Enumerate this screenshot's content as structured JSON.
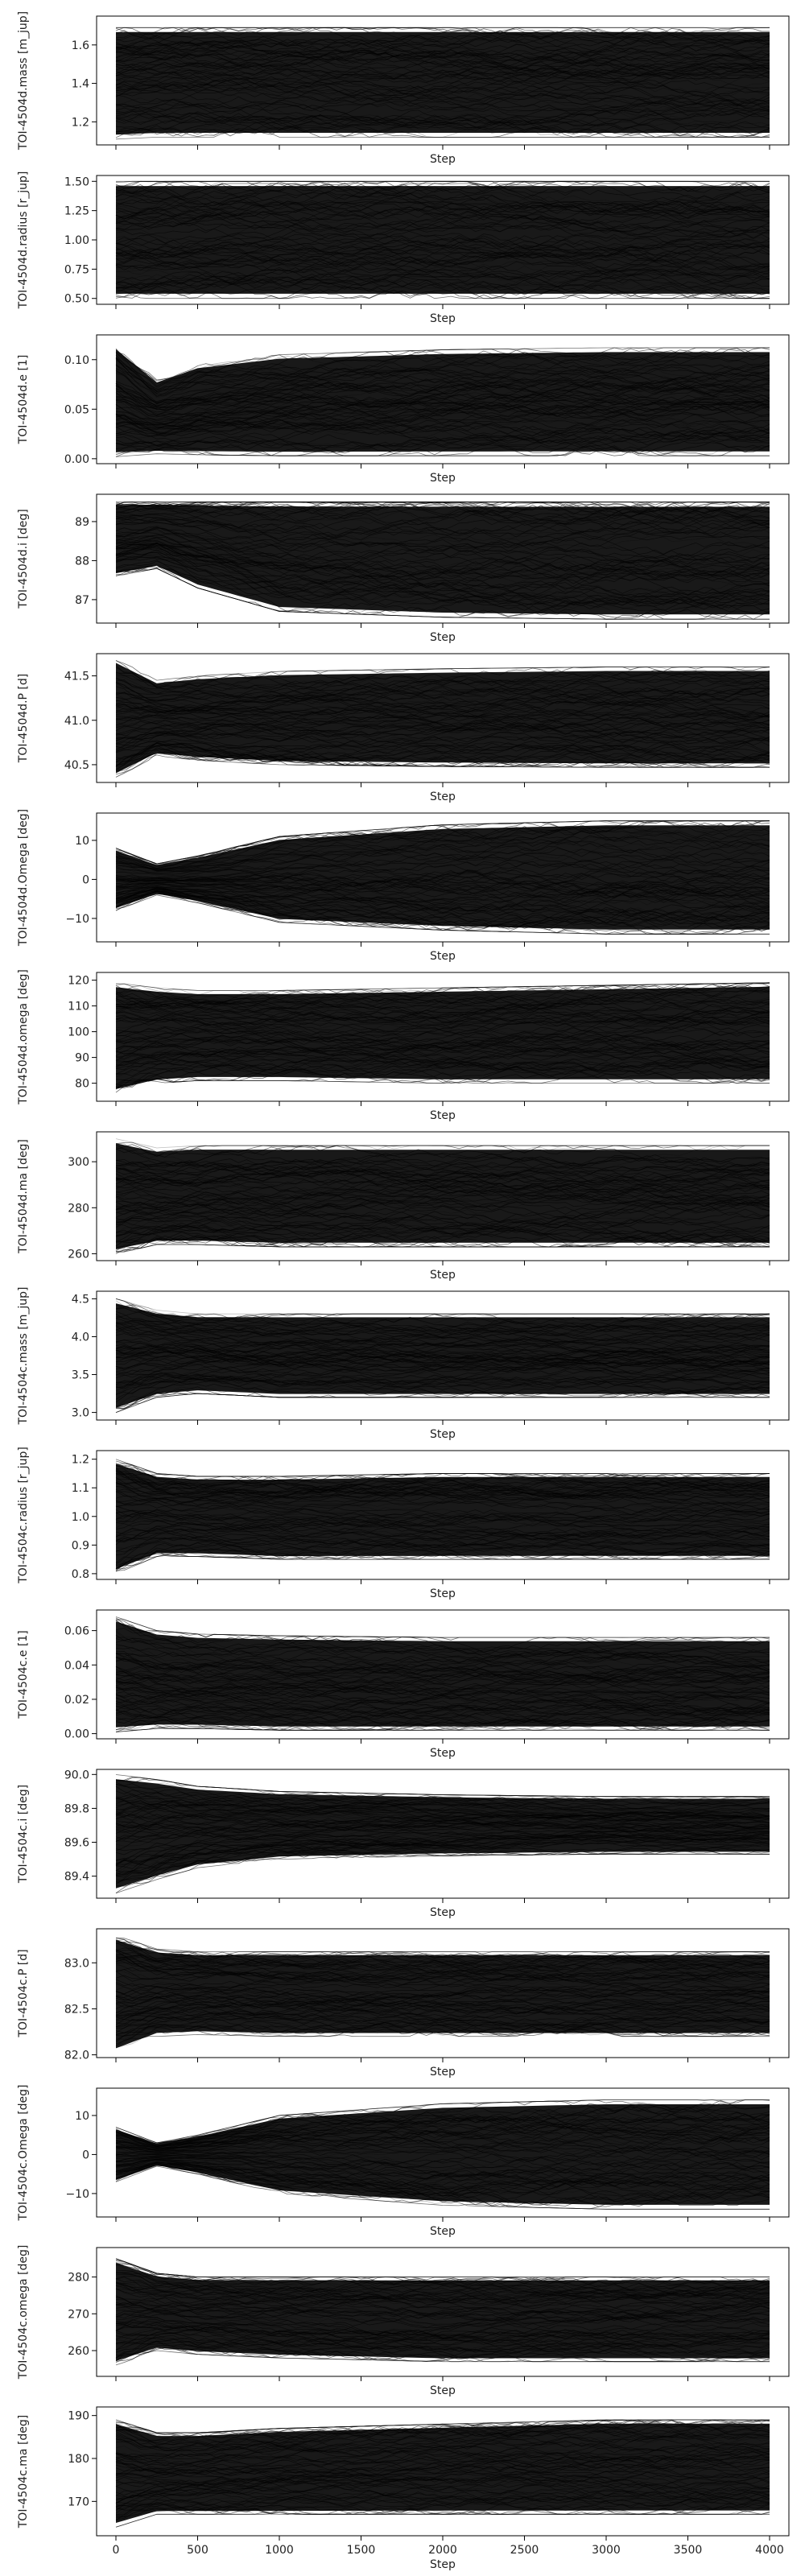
{
  "chart_data": [
    {
      "type": "line",
      "xlabel": "Step",
      "ylabel": "TOI-4504d.mass [m_jup]",
      "xlim": [
        0,
        4000
      ],
      "ylim": [
        1.08,
        1.75
      ],
      "yticks": [
        1.2,
        1.4,
        1.6
      ],
      "ytick_labels": [
        "1.2",
        "1.4",
        "1.6"
      ],
      "series": [
        {
          "x": [
            0,
            250,
            500,
            1000,
            2000,
            3000,
            4000
          ],
          "center": [
            1.42,
            1.42,
            1.42,
            1.42,
            1.42,
            1.42,
            1.42
          ],
          "upper": [
            1.69,
            1.69,
            1.69,
            1.69,
            1.69,
            1.69,
            1.69
          ],
          "lower": [
            1.11,
            1.12,
            1.12,
            1.12,
            1.12,
            1.12,
            1.12
          ]
        }
      ]
    },
    {
      "type": "line",
      "xlabel": "Step",
      "ylabel": "TOI-4504d.radius [r_jup]",
      "xlim": [
        0,
        4000
      ],
      "ylim": [
        0.45,
        1.55
      ],
      "yticks": [
        0.5,
        0.75,
        1.0,
        1.25,
        1.5
      ],
      "ytick_labels": [
        "0.50",
        "0.75",
        "1.00",
        "1.25",
        "1.50"
      ],
      "series": [
        {
          "x": [
            0,
            250,
            500,
            1000,
            2000,
            3000,
            4000
          ],
          "center": [
            1.0,
            1.0,
            1.0,
            1.0,
            1.0,
            1.0,
            1.0
          ],
          "upper": [
            1.5,
            1.5,
            1.5,
            1.5,
            1.5,
            1.5,
            1.5
          ],
          "lower": [
            0.5,
            0.5,
            0.5,
            0.5,
            0.5,
            0.5,
            0.5
          ]
        }
      ]
    },
    {
      "type": "line",
      "xlabel": "Step",
      "ylabel": "TOI-4504d.e [1]",
      "xlim": [
        0,
        4000
      ],
      "ylim": [
        -0.005,
        0.125
      ],
      "yticks": [
        0.0,
        0.05,
        0.1
      ],
      "ytick_labels": [
        "0.00",
        "0.05",
        "0.10"
      ],
      "series": [
        {
          "x": [
            0,
            250,
            500,
            1000,
            2000,
            3000,
            4000
          ],
          "center": [
            0.055,
            0.05,
            0.055,
            0.057,
            0.058,
            0.058,
            0.058
          ],
          "upper": [
            0.115,
            0.08,
            0.095,
            0.105,
            0.11,
            0.112,
            0.112
          ],
          "lower": [
            0.002,
            0.005,
            0.004,
            0.003,
            0.003,
            0.003,
            0.003
          ]
        }
      ]
    },
    {
      "type": "line",
      "xlabel": "Step",
      "ylabel": "TOI-4504d.i [deg]",
      "xlim": [
        0,
        4000
      ],
      "ylim": [
        86.4,
        89.7
      ],
      "yticks": [
        87,
        88,
        89
      ],
      "ytick_labels": [
        "87",
        "88",
        "89"
      ],
      "series": [
        {
          "x": [
            0,
            250,
            500,
            1000,
            2000,
            3000,
            4000
          ],
          "center": [
            88.6,
            88.7,
            88.5,
            88.3,
            88.1,
            88.0,
            88.0
          ],
          "upper": [
            89.5,
            89.5,
            89.5,
            89.5,
            89.5,
            89.5,
            89.5
          ],
          "lower": [
            87.6,
            87.8,
            87.3,
            86.7,
            86.55,
            86.5,
            86.5
          ]
        }
      ]
    },
    {
      "type": "line",
      "xlabel": "Step",
      "ylabel": "TOI-4504d.P [d]",
      "xlim": [
        0,
        4000
      ],
      "ylim": [
        40.3,
        41.75
      ],
      "yticks": [
        40.5,
        41.0,
        41.5
      ],
      "ytick_labels": [
        "40.5",
        "41.0",
        "41.5"
      ],
      "series": [
        {
          "x": [
            0,
            250,
            500,
            1000,
            2000,
            3000,
            4000
          ],
          "center": [
            41.05,
            41.05,
            41.05,
            41.05,
            41.05,
            41.05,
            41.05
          ],
          "upper": [
            41.7,
            41.45,
            41.5,
            41.55,
            41.58,
            41.6,
            41.6
          ],
          "lower": [
            40.35,
            40.6,
            40.55,
            40.5,
            40.48,
            40.47,
            40.47
          ]
        }
      ]
    },
    {
      "type": "line",
      "xlabel": "Step",
      "ylabel": "TOI-4504d.Omega [deg]",
      "xlim": [
        0,
        4000
      ],
      "ylim": [
        -16,
        17
      ],
      "yticks": [
        -10,
        0,
        10
      ],
      "ytick_labels": [
        "−10",
        "0",
        "10"
      ],
      "series": [
        {
          "x": [
            0,
            250,
            500,
            1000,
            2000,
            3000,
            4000
          ],
          "center": [
            0,
            0,
            0,
            0,
            0,
            0,
            0
          ],
          "upper": [
            8,
            4,
            6,
            11,
            14,
            15,
            15
          ],
          "lower": [
            -8,
            -4,
            -6,
            -11,
            -13,
            -14,
            -14
          ]
        }
      ]
    },
    {
      "type": "line",
      "xlabel": "Step",
      "ylabel": "TOI-4504d.omega [deg]",
      "xlim": [
        0,
        4000
      ],
      "ylim": [
        73,
        123
      ],
      "yticks": [
        80,
        90,
        100,
        110,
        120
      ],
      "ytick_labels": [
        "80",
        "90",
        "100",
        "110",
        "120"
      ],
      "series": [
        {
          "x": [
            0,
            250,
            500,
            1000,
            2000,
            3000,
            4000
          ],
          "center": [
            97,
            97,
            97,
            97,
            98,
            99,
            100
          ],
          "upper": [
            119,
            117,
            116,
            116,
            117,
            118,
            119
          ],
          "lower": [
            76,
            80,
            81,
            81,
            80,
            80,
            80
          ]
        }
      ]
    },
    {
      "type": "line",
      "xlabel": "Step",
      "ylabel": "TOI-4504d.ma [deg]",
      "xlim": [
        0,
        4000
      ],
      "ylim": [
        257,
        313
      ],
      "yticks": [
        260,
        280,
        300
      ],
      "ytick_labels": [
        "260",
        "280",
        "300"
      ],
      "series": [
        {
          "x": [
            0,
            250,
            500,
            1000,
            2000,
            3000,
            4000
          ],
          "center": [
            285,
            285,
            285,
            285,
            285,
            285,
            285
          ],
          "upper": [
            310,
            306,
            307,
            307,
            307,
            307,
            307
          ],
          "lower": [
            260,
            264,
            264,
            263,
            263,
            263,
            263
          ]
        }
      ]
    },
    {
      "type": "line",
      "xlabel": "Step",
      "ylabel": "TOI-4504c.mass [m_jup]",
      "xlim": [
        0,
        4000
      ],
      "ylim": [
        2.9,
        4.6
      ],
      "yticks": [
        3.0,
        3.5,
        4.0,
        4.5
      ],
      "ytick_labels": [
        "3.0",
        "3.5",
        "4.0",
        "4.5"
      ],
      "series": [
        {
          "x": [
            0,
            250,
            500,
            1000,
            2000,
            3000,
            4000
          ],
          "center": [
            3.75,
            3.75,
            3.75,
            3.75,
            3.75,
            3.75,
            3.75
          ],
          "upper": [
            4.5,
            4.35,
            4.3,
            4.3,
            4.3,
            4.3,
            4.3
          ],
          "lower": [
            3.0,
            3.2,
            3.25,
            3.2,
            3.2,
            3.2,
            3.2
          ]
        }
      ]
    },
    {
      "type": "line",
      "xlabel": "Step",
      "ylabel": "TOI-4504c.radius [r_jup]",
      "xlim": [
        0,
        4000
      ],
      "ylim": [
        0.78,
        1.23
      ],
      "yticks": [
        0.8,
        0.9,
        1.0,
        1.1,
        1.2
      ],
      "ytick_labels": [
        "0.8",
        "0.9",
        "1.0",
        "1.1",
        "1.2"
      ],
      "series": [
        {
          "x": [
            0,
            250,
            500,
            1000,
            2000,
            3000,
            4000
          ],
          "center": [
            1.0,
            1.0,
            1.0,
            1.0,
            1.0,
            1.0,
            1.0
          ],
          "upper": [
            1.2,
            1.15,
            1.14,
            1.14,
            1.15,
            1.15,
            1.15
          ],
          "lower": [
            0.8,
            0.86,
            0.86,
            0.85,
            0.85,
            0.85,
            0.85
          ]
        }
      ]
    },
    {
      "type": "line",
      "xlabel": "Step",
      "ylabel": "TOI-4504c.e [1]",
      "xlim": [
        0,
        4000
      ],
      "ylim": [
        -0.003,
        0.072
      ],
      "yticks": [
        0.0,
        0.02,
        0.04,
        0.06
      ],
      "ytick_labels": [
        "0.00",
        "0.02",
        "0.04",
        "0.06"
      ],
      "series": [
        {
          "x": [
            0,
            250,
            500,
            1000,
            2000,
            3000,
            4000
          ],
          "center": [
            0.03,
            0.03,
            0.03,
            0.03,
            0.03,
            0.03,
            0.03
          ],
          "upper": [
            0.068,
            0.06,
            0.058,
            0.057,
            0.056,
            0.056,
            0.056
          ],
          "lower": [
            0.001,
            0.003,
            0.003,
            0.002,
            0.002,
            0.002,
            0.002
          ]
        }
      ]
    },
    {
      "type": "line",
      "xlabel": "Step",
      "ylabel": "TOI-4504c.i [deg]",
      "xlim": [
        0,
        4000
      ],
      "ylim": [
        89.27,
        90.03
      ],
      "yticks": [
        89.4,
        89.6,
        89.8,
        90.0
      ],
      "ytick_labels": [
        "89.4",
        "89.6",
        "89.8",
        "90.0"
      ],
      "series": [
        {
          "x": [
            0,
            250,
            500,
            1000,
            2000,
            3000,
            4000
          ],
          "center": [
            89.66,
            89.68,
            89.69,
            89.7,
            89.7,
            89.7,
            89.7
          ],
          "upper": [
            90.0,
            89.97,
            89.93,
            89.9,
            89.88,
            89.87,
            89.87
          ],
          "lower": [
            89.3,
            89.38,
            89.45,
            89.5,
            89.52,
            89.53,
            89.53
          ]
        }
      ]
    },
    {
      "type": "line",
      "xlabel": "Step",
      "ylabel": "TOI-4504c.P [d]",
      "xlim": [
        0,
        4000
      ],
      "ylim": [
        81.97,
        83.37
      ],
      "yticks": [
        82.0,
        82.5,
        83.0
      ],
      "ytick_labels": [
        "82.0",
        "82.5",
        "83.0"
      ],
      "series": [
        {
          "x": [
            0,
            250,
            500,
            1000,
            2000,
            3000,
            4000
          ],
          "center": [
            82.65,
            82.65,
            82.65,
            82.65,
            82.65,
            82.65,
            82.65
          ],
          "upper": [
            83.3,
            83.15,
            83.12,
            83.12,
            83.12,
            83.12,
            83.12
          ],
          "lower": [
            82.02,
            82.2,
            82.22,
            82.2,
            82.2,
            82.2,
            82.2
          ]
        }
      ]
    },
    {
      "type": "line",
      "xlabel": "Step",
      "ylabel": "TOI-4504c.Omega [deg]",
      "xlim": [
        0,
        4000
      ],
      "ylim": [
        -16,
        17
      ],
      "yticks": [
        -10,
        0,
        10
      ],
      "ytick_labels": [
        "−10",
        "0",
        "10"
      ],
      "series": [
        {
          "x": [
            0,
            250,
            500,
            1000,
            2000,
            3000,
            4000
          ],
          "center": [
            0,
            0,
            0,
            0,
            0,
            0,
            0
          ],
          "upper": [
            7,
            3,
            5,
            10,
            13,
            14,
            14
          ],
          "lower": [
            -7,
            -3,
            -5,
            -10,
            -13,
            -14,
            -14
          ]
        }
      ]
    },
    {
      "type": "line",
      "xlabel": "Step",
      "ylabel": "TOI-4504c.omega [deg]",
      "xlim": [
        0,
        4000
      ],
      "ylim": [
        253,
        288
      ],
      "yticks": [
        260,
        270,
        280
      ],
      "ytick_labels": [
        "260",
        "270",
        "280"
      ],
      "series": [
        {
          "x": [
            0,
            250,
            500,
            1000,
            2000,
            3000,
            4000
          ],
          "center": [
            270,
            270,
            270,
            270,
            270,
            270,
            270
          ],
          "upper": [
            285,
            281,
            280,
            280,
            280,
            280,
            280
          ],
          "lower": [
            256,
            260,
            259,
            258,
            257,
            257,
            257
          ]
        }
      ]
    },
    {
      "type": "line",
      "xlabel": "Step",
      "ylabel": "TOI-4504c.ma [deg]",
      "xlim": [
        0,
        4000
      ],
      "ylim": [
        162,
        192
      ],
      "yticks": [
        170,
        180,
        190
      ],
      "ytick_labels": [
        "170",
        "180",
        "190"
      ],
      "series": [
        {
          "x": [
            0,
            250,
            500,
            1000,
            2000,
            3000,
            4000
          ],
          "center": [
            176,
            175,
            175,
            176,
            176,
            176,
            176
          ],
          "upper": [
            189,
            186,
            186,
            187,
            188,
            189,
            189
          ],
          "lower": [
            164,
            167,
            167,
            167,
            167,
            167,
            167
          ]
        }
      ]
    }
  ],
  "shared_xticks": [
    0,
    500,
    1000,
    1500,
    2000,
    2500,
    3000,
    3500,
    4000
  ],
  "shared_xtick_labels": [
    "0",
    "500",
    "1000",
    "1500",
    "2000",
    "2500",
    "3000",
    "3500",
    "4000"
  ]
}
